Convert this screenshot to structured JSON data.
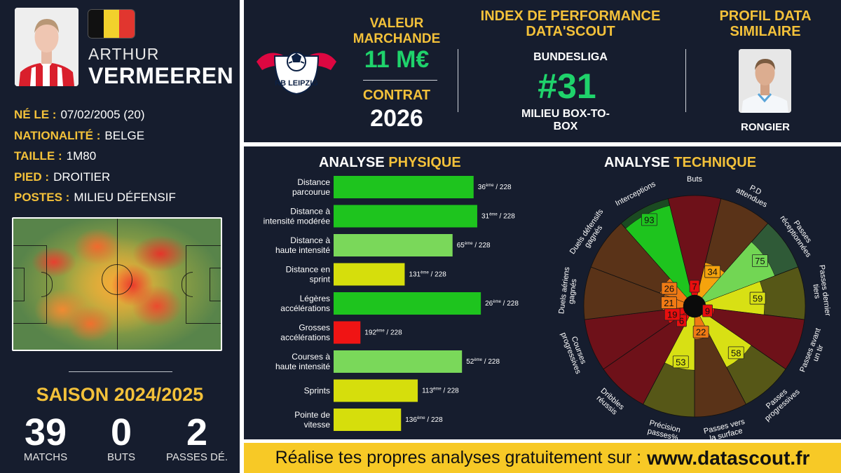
{
  "player": {
    "first_name": "ARTHUR",
    "last_name": "VERMEEREN",
    "photo": "player-photo",
    "flag_colors": [
      "#111111",
      "#f2d12c",
      "#e1362f"
    ],
    "info": [
      {
        "key": "NÉ LE :",
        "value": "07/02/2005 (20)"
      },
      {
        "key": "NATIONALITÉ :",
        "value": "BELGE"
      },
      {
        "key": "TAILLE :",
        "value": "1M80"
      },
      {
        "key": "PIED :",
        "value": "DROITIER"
      },
      {
        "key": "POSTES :",
        "value": "MILIEU DÉFENSIF"
      }
    ]
  },
  "season": {
    "title": "SAISON 2024/2025",
    "stats": [
      {
        "value": "39",
        "label": "MATCHS"
      },
      {
        "value": "0",
        "label": "BUTS"
      },
      {
        "value": "2",
        "label": "PASSES DÉ."
      }
    ]
  },
  "club": {
    "logo": "rb-leipzig-logo",
    "logo_text": "RB LEIPZIG"
  },
  "market": {
    "label": "VALEUR MARCHANDE",
    "value": "11 M€",
    "contract_label": "CONTRAT",
    "contract_value": "2026"
  },
  "index": {
    "title": "INDEX DE PERFORMANCE DATA'SCOUT",
    "league": "BUNDESLIGA",
    "rank": "#31",
    "role": "MILIEU BOX-TO-BOX"
  },
  "similar": {
    "title": "PROFIL DATA SIMILAIRE",
    "name": "RONGIER"
  },
  "physical": {
    "title_white": "ANALYSE",
    "title_yellow": "PHYSIQUE"
  },
  "technical": {
    "title_white": "ANALYSE",
    "title_yellow": "TECHNIQUE"
  },
  "footer": {
    "text": "Réalise tes propres analyses gratuitement sur :",
    "url": "www.datascout.fr"
  },
  "chart_data": [
    {
      "type": "bar",
      "orientation": "horizontal",
      "title": "ANALYSE PHYSIQUE",
      "max_rank": 228,
      "rank_suffix": "ème",
      "rows": [
        {
          "label": [
            "Distance",
            "parcourue"
          ],
          "rank": 36,
          "color": "#1ec41e"
        },
        {
          "label": [
            "Distance à",
            "intensité modérée"
          ],
          "rank": 31,
          "color": "#1ec41e"
        },
        {
          "label": [
            "Distance à",
            "haute intensité"
          ],
          "rank": 65,
          "color": "#7ad85a"
        },
        {
          "label": [
            "Distance en",
            "sprint"
          ],
          "rank": 131,
          "color": "#d6de0c"
        },
        {
          "label": [
            "Légères",
            "accélérations"
          ],
          "rank": 26,
          "color": "#1ec41e"
        },
        {
          "label": [
            "Grosses",
            "accélérations"
          ],
          "rank": 192,
          "color": "#f01414"
        },
        {
          "label": [
            "Courses à",
            "haute intensité"
          ],
          "rank": 52,
          "color": "#7ad85a"
        },
        {
          "label": [
            "Sprints"
          ],
          "rank": 113,
          "color": "#d6de0c"
        },
        {
          "label": [
            "Pointe de",
            "vitesse"
          ],
          "rank": 136,
          "color": "#d6de0c"
        }
      ]
    },
    {
      "type": "pie",
      "variant": "polar",
      "title": "ANALYSE TECHNIQUE",
      "range": [
        0,
        100
      ],
      "slices": [
        {
          "label": [
            "Buts"
          ],
          "value": 7,
          "color": "#e80e0e",
          "bg": "#6e1119"
        },
        {
          "label": [
            "P.D",
            "attendues"
          ],
          "value": 34,
          "color": "#f5a30d",
          "bg": "#5a3318"
        },
        {
          "label": [
            "Passes",
            "réceptionnées"
          ],
          "value": 75,
          "color": "#72d654",
          "bg": "#2f5a37"
        },
        {
          "label": [
            "Passes dernier",
            "tiers"
          ],
          "value": 59,
          "color": "#d8e014",
          "bg": "#565717"
        },
        {
          "label": [
            "Passes avant",
            "un tir"
          ],
          "value": 9,
          "color": "#e80e0e",
          "bg": "#6e1119"
        },
        {
          "label": [
            "Passes",
            "progressives"
          ],
          "value": 58,
          "color": "#d8e014",
          "bg": "#565717"
        },
        {
          "label": [
            "Passes vers",
            "la surface"
          ],
          "value": 22,
          "color": "#f07a14",
          "bg": "#5a3318"
        },
        {
          "label": [
            "Précision",
            "passes%"
          ],
          "value": 53,
          "color": "#d8e014",
          "bg": "#565717"
        },
        {
          "label": [
            "Dribbles",
            "réussis"
          ],
          "value": 6,
          "color": "#e80e0e",
          "bg": "#6e1119"
        },
        {
          "label": [
            "Courses",
            "progressives"
          ],
          "value": 19,
          "color": "#e80e0e",
          "bg": "#6e1119"
        },
        {
          "label": [
            "Duels aériens",
            "gagnés"
          ],
          "value": 21,
          "color": "#f07a14",
          "bg": "#5a3318"
        },
        {
          "label": [
            "Duels défensifs",
            "gagnés"
          ],
          "value": 26,
          "color": "#f07a14",
          "bg": "#5a3318"
        },
        {
          "label": [
            "Interceptions"
          ],
          "value": 93,
          "color": "#1ec41e",
          "bg": "#1b4a22"
        }
      ]
    }
  ]
}
